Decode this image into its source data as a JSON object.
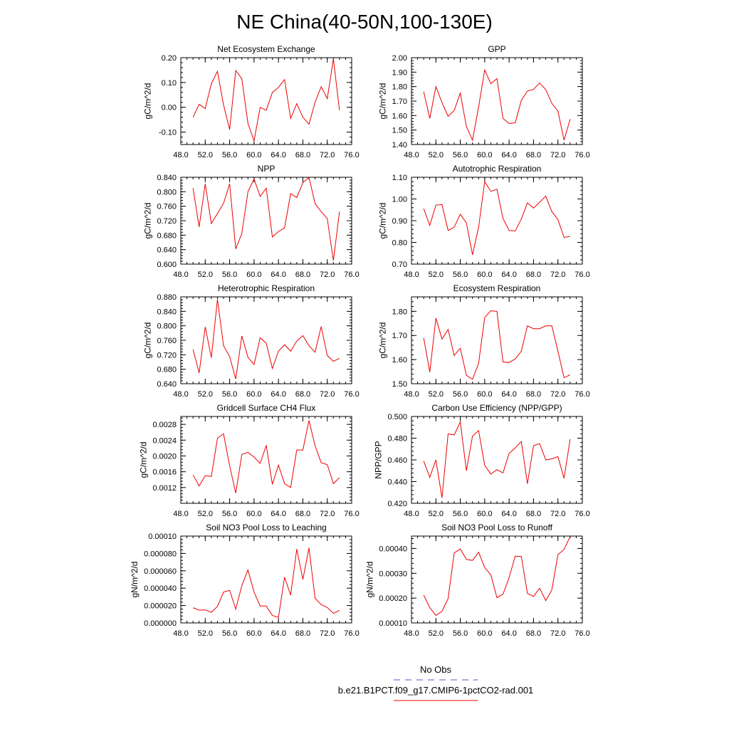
{
  "page_title": "NE China(40-50N,100-130E)",
  "legend": {
    "entries": [
      {
        "label": "No Obs",
        "color": "#5555cc",
        "style": "dashed"
      },
      {
        "label": "b.e21.B1PCT.f09_g17.CMIP6-1pctCO2-rad.001",
        "color": "#ee0000",
        "style": "solid"
      }
    ]
  },
  "chart_data": [
    {
      "type": "line",
      "title": "Net Ecosystem Exchange",
      "ylabel": "gC/m^2/d",
      "xlim": [
        48,
        76
      ],
      "ylim": [
        -0.15,
        0.2
      ],
      "xticks": [
        48,
        52,
        56,
        60,
        64,
        68,
        72,
        76
      ],
      "xtick_labels": [
        "48.0",
        "52.0",
        "56.0",
        "60.0",
        "64.0",
        "68.0",
        "72.0",
        "76.0"
      ],
      "yticks": [
        -0.1,
        0.0,
        0.1,
        0.2
      ],
      "ytick_labels": [
        "-0.10",
        "0.00",
        "0.10",
        "0.20"
      ],
      "x": [
        50,
        51,
        52,
        53,
        54,
        55,
        56,
        57,
        58,
        59,
        60,
        61,
        62,
        63,
        64,
        65,
        66,
        67,
        68,
        69,
        70,
        71,
        72,
        73,
        74
      ],
      "series": [
        {
          "color": "#ee0000",
          "values": [
            -0.04,
            0.012,
            -0.005,
            0.095,
            0.145,
            0.01,
            -0.09,
            0.148,
            0.115,
            -0.065,
            -0.135,
            0.0,
            -0.012,
            0.06,
            0.08,
            0.112,
            -0.045,
            0.015,
            -0.04,
            -0.068,
            0.02,
            0.083,
            0.035,
            0.195,
            -0.012
          ]
        }
      ]
    },
    {
      "type": "line",
      "title": "GPP",
      "ylabel": "gC/m^2/d",
      "xlim": [
        48,
        76
      ],
      "ylim": [
        1.4,
        2.0
      ],
      "xticks": [
        48,
        52,
        56,
        60,
        64,
        68,
        72,
        76
      ],
      "xtick_labels": [
        "48.0",
        "52.0",
        "56.0",
        "60.0",
        "64.0",
        "68.0",
        "72.0",
        "76.0"
      ],
      "yticks": [
        1.4,
        1.5,
        1.6,
        1.7,
        1.8,
        1.9,
        2.0
      ],
      "ytick_labels": [
        "1.40",
        "1.50",
        "1.60",
        "1.70",
        "1.80",
        "1.90",
        "2.00"
      ],
      "x": [
        50,
        51,
        52,
        53,
        54,
        55,
        56,
        57,
        58,
        59,
        60,
        61,
        62,
        63,
        64,
        65,
        66,
        67,
        68,
        69,
        70,
        71,
        72,
        73,
        74
      ],
      "series": [
        {
          "color": "#ee0000",
          "values": [
            1.765,
            1.58,
            1.8,
            1.69,
            1.595,
            1.635,
            1.755,
            1.525,
            1.43,
            1.66,
            1.915,
            1.82,
            1.855,
            1.58,
            1.545,
            1.55,
            1.705,
            1.77,
            1.78,
            1.825,
            1.78,
            1.685,
            1.63,
            1.43,
            1.575
          ]
        }
      ]
    },
    {
      "type": "line",
      "title": "NPP",
      "ylabel": "gC/m^2/d",
      "xlim": [
        48,
        76
      ],
      "ylim": [
        0.6,
        0.84
      ],
      "xticks": [
        48,
        52,
        56,
        60,
        64,
        68,
        72,
        76
      ],
      "xtick_labels": [
        "48.0",
        "52.0",
        "56.0",
        "60.0",
        "64.0",
        "68.0",
        "72.0",
        "76.0"
      ],
      "yticks": [
        0.6,
        0.64,
        0.68,
        0.72,
        0.76,
        0.8,
        0.84
      ],
      "ytick_labels": [
        "0.600",
        "0.640",
        "0.680",
        "0.720",
        "0.760",
        "0.800",
        "0.840"
      ],
      "x": [
        50,
        51,
        52,
        53,
        54,
        55,
        56,
        57,
        58,
        59,
        60,
        61,
        62,
        63,
        64,
        65,
        66,
        67,
        68,
        69,
        70,
        71,
        72,
        73,
        74
      ],
      "series": [
        {
          "color": "#ee0000",
          "values": [
            0.81,
            0.703,
            0.822,
            0.712,
            0.74,
            0.768,
            0.822,
            0.642,
            0.685,
            0.8,
            0.835,
            0.787,
            0.81,
            0.675,
            0.69,
            0.7,
            0.795,
            0.784,
            0.825,
            0.84,
            0.767,
            0.745,
            0.726,
            0.61,
            0.745
          ]
        }
      ]
    },
    {
      "type": "line",
      "title": "Autotrophic Respiration",
      "ylabel": "gC/m^2/d",
      "xlim": [
        48,
        76
      ],
      "ylim": [
        0.7,
        1.1
      ],
      "xticks": [
        48,
        52,
        56,
        60,
        64,
        68,
        72,
        76
      ],
      "xtick_labels": [
        "48.0",
        "52.0",
        "56.0",
        "60.0",
        "64.0",
        "68.0",
        "72.0",
        "76.0"
      ],
      "yticks": [
        0.7,
        0.8,
        0.9,
        1.0,
        1.1
      ],
      "ytick_labels": [
        "0.70",
        "0.80",
        "0.90",
        "1.00",
        "1.10"
      ],
      "x": [
        50,
        51,
        52,
        53,
        54,
        55,
        56,
        57,
        58,
        59,
        60,
        61,
        62,
        63,
        64,
        65,
        66,
        67,
        68,
        69,
        70,
        71,
        72,
        73,
        74
      ],
      "series": [
        {
          "color": "#ee0000",
          "values": [
            0.955,
            0.878,
            0.972,
            0.974,
            0.855,
            0.87,
            0.93,
            0.89,
            0.743,
            0.87,
            1.08,
            1.035,
            1.045,
            0.91,
            0.855,
            0.853,
            0.908,
            0.982,
            0.958,
            0.985,
            1.013,
            0.942,
            0.905,
            0.823,
            0.828
          ]
        }
      ]
    },
    {
      "type": "line",
      "title": "Heterotrophic Respiration",
      "ylabel": "gC/m^2/d",
      "xlim": [
        48,
        76
      ],
      "ylim": [
        0.64,
        0.88
      ],
      "xticks": [
        48,
        52,
        56,
        60,
        64,
        68,
        72,
        76
      ],
      "xtick_labels": [
        "48.0",
        "52.0",
        "56.0",
        "60.0",
        "64.0",
        "68.0",
        "72.0",
        "76.0"
      ],
      "yticks": [
        0.64,
        0.68,
        0.72,
        0.76,
        0.8,
        0.84,
        0.88
      ],
      "ytick_labels": [
        "0.640",
        "0.680",
        "0.720",
        "0.760",
        "0.800",
        "0.840",
        "0.880"
      ],
      "x": [
        50,
        51,
        52,
        53,
        54,
        55,
        56,
        57,
        58,
        59,
        60,
        61,
        62,
        63,
        64,
        65,
        66,
        67,
        68,
        69,
        70,
        71,
        72,
        73,
        74
      ],
      "series": [
        {
          "color": "#ee0000",
          "values": [
            0.735,
            0.67,
            0.797,
            0.712,
            0.873,
            0.745,
            0.715,
            0.653,
            0.772,
            0.713,
            0.693,
            0.767,
            0.752,
            0.682,
            0.73,
            0.748,
            0.73,
            0.758,
            0.773,
            0.745,
            0.727,
            0.798,
            0.718,
            0.702,
            0.71
          ]
        }
      ]
    },
    {
      "type": "line",
      "title": "Ecosystem Respiration",
      "ylabel": "gC/m^2/d",
      "xlim": [
        48,
        76
      ],
      "ylim": [
        1.5,
        1.86
      ],
      "xticks": [
        48,
        52,
        56,
        60,
        64,
        68,
        72,
        76
      ],
      "xtick_labels": [
        "48.0",
        "52.0",
        "56.0",
        "60.0",
        "64.0",
        "68.0",
        "72.0",
        "76.0"
      ],
      "yticks": [
        1.5,
        1.6,
        1.7,
        1.8
      ],
      "ytick_labels": [
        "1.50",
        "1.60",
        "1.70",
        "1.80"
      ],
      "x": [
        50,
        51,
        52,
        53,
        54,
        55,
        56,
        57,
        58,
        59,
        60,
        61,
        62,
        63,
        64,
        65,
        66,
        67,
        68,
        69,
        70,
        71,
        72,
        73,
        74
      ],
      "series": [
        {
          "color": "#ee0000",
          "values": [
            1.69,
            1.548,
            1.772,
            1.685,
            1.725,
            1.617,
            1.647,
            1.535,
            1.518,
            1.585,
            1.775,
            1.802,
            1.8,
            1.59,
            1.588,
            1.603,
            1.635,
            1.74,
            1.728,
            1.728,
            1.74,
            1.74,
            1.635,
            1.525,
            1.537
          ]
        }
      ]
    },
    {
      "type": "line",
      "title": "Gridcell Surface CH4 Flux",
      "ylabel": "gC/m^2/d",
      "xlim": [
        48,
        76
      ],
      "ylim": [
        0.0008,
        0.003
      ],
      "xticks": [
        48,
        52,
        56,
        60,
        64,
        68,
        72,
        76
      ],
      "xtick_labels": [
        "48.0",
        "52.0",
        "56.0",
        "60.0",
        "64.0",
        "68.0",
        "72.0",
        "76.0"
      ],
      "yticks": [
        0.0012,
        0.0016,
        0.002,
        0.0024,
        0.0028
      ],
      "ytick_labels": [
        "0.0012",
        "0.0016",
        "0.0020",
        "0.0024",
        "0.0028"
      ],
      "x": [
        50,
        51,
        52,
        53,
        54,
        55,
        56,
        57,
        58,
        59,
        60,
        61,
        62,
        63,
        64,
        65,
        66,
        67,
        68,
        69,
        70,
        71,
        72,
        73,
        74
      ],
      "series": [
        {
          "color": "#ee0000",
          "values": [
            0.00152,
            0.00124,
            0.0015,
            0.00148,
            0.00245,
            0.00256,
            0.00175,
            0.00106,
            0.00204,
            0.00209,
            0.00197,
            0.00181,
            0.00227,
            0.00128,
            0.00177,
            0.0013,
            0.0012,
            0.00215,
            0.00215,
            0.0029,
            0.00226,
            0.00183,
            0.00178,
            0.0013,
            0.00145
          ]
        }
      ]
    },
    {
      "type": "line",
      "title": "Carbon Use Efficiency (NPP/GPP)",
      "ylabel": "NPP/GPP",
      "xlim": [
        48,
        76
      ],
      "ylim": [
        0.42,
        0.5
      ],
      "xticks": [
        48,
        52,
        56,
        60,
        64,
        68,
        72,
        76
      ],
      "xtick_labels": [
        "48.0",
        "52.0",
        "56.0",
        "60.0",
        "64.0",
        "68.0",
        "72.0",
        "76.0"
      ],
      "yticks": [
        0.42,
        0.44,
        0.46,
        0.48,
        0.5
      ],
      "ytick_labels": [
        "0.420",
        "0.440",
        "0.460",
        "0.480",
        "0.500"
      ],
      "x": [
        50,
        51,
        52,
        53,
        54,
        55,
        56,
        57,
        58,
        59,
        60,
        61,
        62,
        63,
        64,
        65,
        66,
        67,
        68,
        69,
        70,
        71,
        72,
        73,
        74
      ],
      "series": [
        {
          "color": "#ee0000",
          "values": [
            0.459,
            0.444,
            0.46,
            0.425,
            0.484,
            0.483,
            0.495,
            0.45,
            0.482,
            0.487,
            0.455,
            0.447,
            0.451,
            0.448,
            0.466,
            0.471,
            0.477,
            0.438,
            0.473,
            0.475,
            0.46,
            0.461,
            0.463,
            0.443,
            0.479
          ]
        }
      ]
    },
    {
      "type": "line",
      "title": "Soil NO3 Pool Loss to Leaching",
      "ylabel": "gN/m^2/d",
      "xlim": [
        48,
        76
      ],
      "ylim": [
        0.0,
        0.0001
      ],
      "xticks": [
        48,
        52,
        56,
        60,
        64,
        68,
        72,
        76
      ],
      "xtick_labels": [
        "48.0",
        "52.0",
        "56.0",
        "60.0",
        "64.0",
        "68.0",
        "72.0",
        "76.0"
      ],
      "yticks": [
        0.0,
        2e-05,
        4e-05,
        6e-05,
        8e-05,
        0.0001
      ],
      "ytick_labels": [
        "0.000000",
        "0.000020",
        "0.000040",
        "0.000060",
        "0.000080",
        "0.00010"
      ],
      "x": [
        50,
        51,
        52,
        53,
        54,
        55,
        56,
        57,
        58,
        59,
        60,
        61,
        62,
        63,
        64,
        65,
        66,
        67,
        68,
        69,
        70,
        71,
        72,
        73,
        74
      ],
      "series": [
        {
          "color": "#ee0000",
          "values": [
            1.75e-05,
            1.48e-05,
            1.5e-05,
            1.22e-05,
            1.9e-05,
            3.55e-05,
            3.75e-05,
            1.58e-05,
            4.3e-05,
            6.1e-05,
            3.55e-05,
            1.95e-05,
            1.95e-05,
            8.5e-06,
            6.5e-06,
            5.25e-05,
            3.2e-05,
            8.5e-05,
            5e-05,
            8.65e-05,
            2.85e-05,
            2.1e-05,
            1.78e-05,
            1.1e-05,
            1.45e-05
          ]
        }
      ]
    },
    {
      "type": "line",
      "title": "Soil NO3 Pool Loss to Runoff",
      "ylabel": "gN/m^2/d",
      "xlim": [
        48,
        76
      ],
      "ylim": [
        0.0001,
        0.00045
      ],
      "xticks": [
        48,
        52,
        56,
        60,
        64,
        68,
        72,
        76
      ],
      "xtick_labels": [
        "48.0",
        "52.0",
        "56.0",
        "60.0",
        "64.0",
        "68.0",
        "72.0",
        "76.0"
      ],
      "yticks": [
        0.0001,
        0.0002,
        0.0003,
        0.0004
      ],
      "ytick_labels": [
        "0.00010",
        "0.00020",
        "0.00030",
        "0.00040"
      ],
      "x": [
        50,
        51,
        52,
        53,
        54,
        55,
        56,
        57,
        58,
        59,
        60,
        61,
        62,
        63,
        64,
        65,
        66,
        67,
        68,
        69,
        70,
        71,
        72,
        73,
        74
      ],
      "series": [
        {
          "color": "#ee0000",
          "values": [
            0.000212,
            0.000162,
            0.00013,
            0.000147,
            0.000198,
            0.000382,
            0.000398,
            0.000356,
            0.000352,
            0.000385,
            0.000323,
            0.000294,
            0.000202,
            0.000216,
            0.000283,
            0.000369,
            0.000368,
            0.000219,
            0.000207,
            0.00024,
            0.00019,
            0.000233,
            0.000375,
            0.000396,
            0.000448
          ]
        }
      ]
    }
  ]
}
